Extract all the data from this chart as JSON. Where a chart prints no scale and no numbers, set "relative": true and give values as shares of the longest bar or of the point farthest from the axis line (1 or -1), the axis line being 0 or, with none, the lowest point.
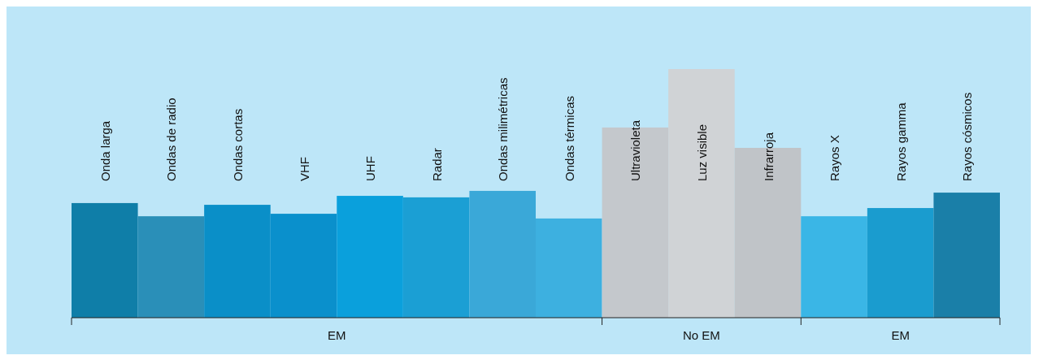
{
  "chart_data": {
    "type": "bar",
    "relative": true,
    "categories": [
      "Onda larga",
      "Ondas de radio",
      "Ondas cortas",
      "VHF",
      "UHF",
      "Radar",
      "Ondas milimétricas",
      "Ondas térmicas",
      "Ultravioleta",
      "Luz visible",
      "Infrarroja",
      "Rayos X",
      "Rayos gamma",
      "Rayos cósmicos"
    ],
    "values": [
      0.461,
      0.408,
      0.454,
      0.418,
      0.49,
      0.484,
      0.51,
      0.399,
      0.765,
      1,
      0.683,
      0.408,
      0.441,
      0.503
    ],
    "colors": [
      "#0f7ea8",
      "#2a8fb8",
      "#0a8fc8",
      "#0a90cc",
      "#0aa0dc",
      "#1b9fd4",
      "#3aa8d8",
      "#3db0e0",
      "#c4c8cc",
      "#d0d3d6",
      "#c0c4c8",
      "#3ab6e6",
      "#1a9ccf",
      "#1a7fa8"
    ],
    "annotations": [
      "EM",
      "No EM",
      "EM"
    ]
  }
}
